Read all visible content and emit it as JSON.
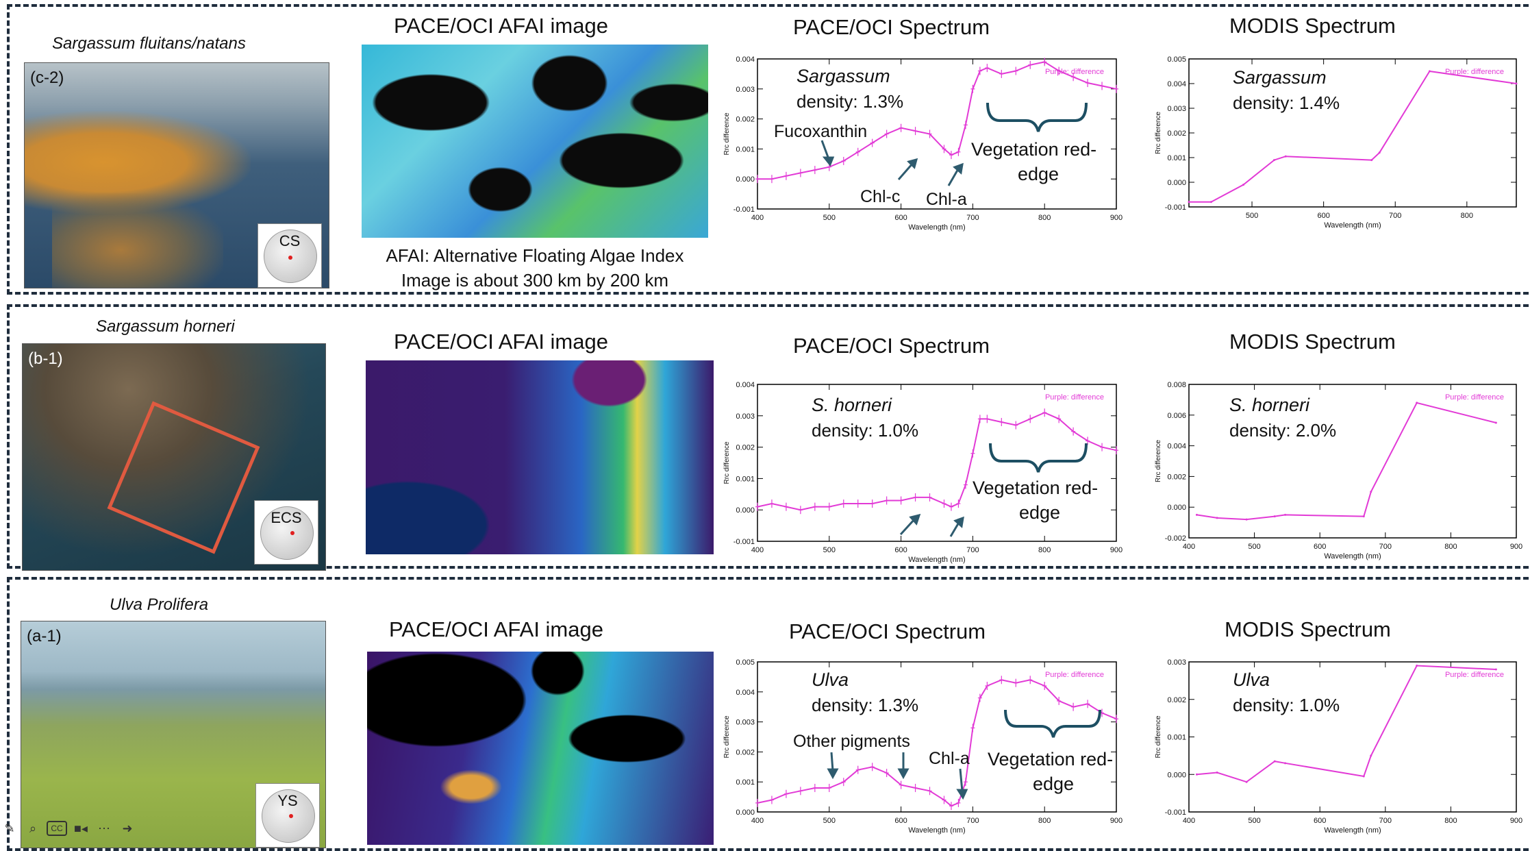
{
  "headers": {
    "afai": "PACE/OCI AFAI image",
    "pace": "PACE/OCI Spectrum",
    "modis": "MODIS Spectrum"
  },
  "axis": {
    "xlabel": "Wavelength (nm)",
    "ylabel": "Rrc difference",
    "legend": "Purple: difference"
  },
  "rows": [
    {
      "species_title": "Sargassum fluitans/natans",
      "photo_label": "(c-2)",
      "region": "CS",
      "caption_line1": "AFAI: Alternative Floating Algae Index",
      "caption_line2": "Image is about 300 km by 200 km",
      "pace_species": "Sargassum",
      "pace_density": "density: 1.3%",
      "modis_species": "Sargassum",
      "modis_density": "density: 1.4%",
      "ann1": "Fucoxanthin",
      "ann2": "Chl-c",
      "ann3": "Chl-a",
      "vre1": "Vegetation red-",
      "vre2": "edge"
    },
    {
      "species_title": "Sargassum horneri",
      "photo_label": "(b-1)",
      "region": "ECS",
      "pace_species": "S. horneri",
      "pace_density": "density: 1.0%",
      "modis_species": "S. horneri",
      "modis_density": "density: 2.0%",
      "vre1": "Vegetation red-",
      "vre2": "edge"
    },
    {
      "species_title": "Ulva Prolifera",
      "photo_label": "(a-1)",
      "region": "YS",
      "pace_species": "Ulva",
      "pace_density": "density: 1.3%",
      "modis_species": "Ulva",
      "modis_density": "density: 1.0%",
      "ann1": "Other pigments",
      "ann3": "Chl-a",
      "vre1": "Vegetation red-",
      "vre2": "edge"
    }
  ],
  "chart_data": [
    {
      "type": "line",
      "id": "pace1",
      "xlim": [
        400,
        900
      ],
      "ylim": [
        -0.001,
        0.004
      ],
      "xticks": [
        400,
        500,
        600,
        700,
        800,
        900
      ],
      "yticks": [
        "-0.001",
        "0.000",
        "0.001",
        "0.002",
        "0.003",
        "0.004"
      ],
      "x": [
        400,
        420,
        440,
        460,
        480,
        500,
        520,
        540,
        560,
        580,
        600,
        620,
        640,
        660,
        670,
        680,
        690,
        700,
        710,
        720,
        740,
        760,
        780,
        800,
        820,
        840,
        860,
        880,
        900
      ],
      "y": [
        0.0,
        0.0,
        0.0001,
        0.0002,
        0.0003,
        0.0004,
        0.0006,
        0.0009,
        0.0012,
        0.0015,
        0.0017,
        0.0016,
        0.0015,
        0.001,
        0.0008,
        0.0009,
        0.0018,
        0.003,
        0.0036,
        0.0037,
        0.0035,
        0.0036,
        0.0038,
        0.0039,
        0.0036,
        0.0034,
        0.0032,
        0.0031,
        0.003
      ],
      "legend": "Purple: difference"
    },
    {
      "type": "line",
      "id": "modis1",
      "xlim": [
        412,
        869
      ],
      "ylim": [
        -0.001,
        0.005
      ],
      "xticks": [
        500,
        600,
        700,
        800
      ],
      "yticks": [
        "-0.001",
        "0.000",
        "0.001",
        "0.002",
        "0.003",
        "0.004",
        "0.005"
      ],
      "x": [
        412,
        443,
        488,
        531,
        547,
        667,
        678,
        748,
        869
      ],
      "y": [
        -0.0008,
        -0.0008,
        -0.0001,
        0.0009,
        0.00105,
        0.0009,
        0.0012,
        0.0045,
        0.004
      ],
      "legend": "Purple: difference"
    },
    {
      "type": "line",
      "id": "pace2",
      "xlim": [
        400,
        900
      ],
      "ylim": [
        -0.001,
        0.004
      ],
      "xticks": [
        400,
        500,
        600,
        700,
        800,
        900
      ],
      "yticks": [
        "-0.001",
        "0.000",
        "0.001",
        "0.002",
        "0.003",
        "0.004"
      ],
      "x": [
        400,
        420,
        440,
        460,
        480,
        500,
        520,
        540,
        560,
        580,
        600,
        620,
        640,
        660,
        670,
        680,
        690,
        700,
        710,
        720,
        740,
        760,
        780,
        800,
        820,
        840,
        860,
        880,
        900
      ],
      "y": [
        0.0001,
        0.0002,
        0.0001,
        0.0,
        0.0001,
        0.0001,
        0.0002,
        0.0002,
        0.0002,
        0.0003,
        0.0003,
        0.0004,
        0.0004,
        0.0002,
        0.0001,
        0.0002,
        0.0008,
        0.0018,
        0.0029,
        0.0029,
        0.0028,
        0.0027,
        0.0029,
        0.0031,
        0.0029,
        0.0025,
        0.0022,
        0.002,
        0.0019
      ],
      "legend": "Purple: difference"
    },
    {
      "type": "line",
      "id": "modis2",
      "xlim": [
        400,
        900
      ],
      "ylim": [
        -0.002,
        0.008
      ],
      "xticks": [
        400,
        500,
        600,
        700,
        800,
        900
      ],
      "yticks": [
        "-0.002",
        "0.000",
        "0.002",
        "0.004",
        "0.006",
        "0.008"
      ],
      "x": [
        412,
        443,
        488,
        531,
        547,
        667,
        678,
        748,
        869
      ],
      "y": [
        -0.0005,
        -0.0007,
        -0.0008,
        -0.0006,
        -0.0005,
        -0.0006,
        0.001,
        0.0068,
        0.0055
      ],
      "legend": "Purple: difference"
    },
    {
      "type": "line",
      "id": "pace3",
      "xlim": [
        400,
        900
      ],
      "ylim": [
        0.0,
        0.005
      ],
      "xticks": [
        400,
        500,
        600,
        700,
        800,
        900
      ],
      "yticks": [
        "0.000",
        "0.001",
        "0.002",
        "0.003",
        "0.004",
        "0.005"
      ],
      "x": [
        400,
        420,
        440,
        460,
        480,
        500,
        520,
        540,
        560,
        580,
        600,
        620,
        640,
        660,
        670,
        680,
        690,
        700,
        710,
        720,
        740,
        760,
        780,
        800,
        820,
        840,
        860,
        880,
        900
      ],
      "y": [
        0.0003,
        0.0004,
        0.0006,
        0.0007,
        0.0008,
        0.0008,
        0.001,
        0.0014,
        0.0015,
        0.0013,
        0.0009,
        0.0008,
        0.0007,
        0.0004,
        0.0002,
        0.0003,
        0.001,
        0.0028,
        0.0038,
        0.0042,
        0.0044,
        0.0043,
        0.0044,
        0.0042,
        0.0037,
        0.0035,
        0.0036,
        0.0033,
        0.0031
      ],
      "legend": "Purple: difference"
    },
    {
      "type": "line",
      "id": "modis3",
      "xlim": [
        400,
        900
      ],
      "ylim": [
        -0.001,
        0.003
      ],
      "xticks": [
        400,
        500,
        600,
        700,
        800,
        900
      ],
      "yticks": [
        "-0.001",
        "0.000",
        "0.001",
        "0.002",
        "0.003"
      ],
      "x": [
        412,
        443,
        488,
        531,
        547,
        667,
        678,
        748,
        869
      ],
      "y": [
        0.0,
        5e-05,
        -0.0002,
        0.00035,
        0.0003,
        -5e-05,
        0.0005,
        0.0029,
        0.0028
      ],
      "legend": "Purple: difference"
    }
  ],
  "toolbar": {
    "icons": [
      "pencil-icon",
      "zoom-icon",
      "captions-icon",
      "camera-icon",
      "more-icon",
      "next-icon"
    ],
    "cc_label": "CC"
  },
  "colors": {
    "line": "#e23ad6",
    "frame": "#1f2d3d",
    "arrow": "#2e5b6e"
  }
}
